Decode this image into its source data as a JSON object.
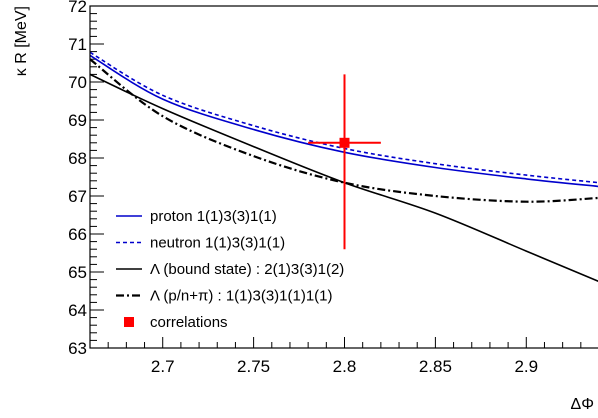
{
  "chart_data": {
    "type": "line",
    "xlabel": "ΔΦ",
    "ylabel": "κ R [MeV]",
    "xlim": [
      2.66,
      2.94
    ],
    "ylim": [
      63,
      72
    ],
    "x_ticks": [
      2.7,
      2.75,
      2.8,
      2.85,
      2.9
    ],
    "x_tick_labels": [
      "2.7",
      "2.75",
      "2.8",
      "2.85",
      "2.9"
    ],
    "y_ticks": [
      63,
      64,
      65,
      66,
      67,
      68,
      69,
      70,
      71,
      72
    ],
    "y_tick_labels": [
      "63",
      "64",
      "65",
      "66",
      "67",
      "68",
      "69",
      "70",
      "71",
      "72"
    ],
    "grid": false,
    "legend_position": "bottom-left",
    "series": [
      {
        "name": "proton 1(1)3(3)1(1)",
        "color": "#0000cc",
        "style": "solid",
        "x": [
          2.66,
          2.7,
          2.75,
          2.8,
          2.85,
          2.9,
          2.94
        ],
        "y": [
          70.7,
          69.55,
          68.75,
          68.15,
          67.75,
          67.45,
          67.25
        ]
      },
      {
        "name": "neutron 1(1)3(3)1(1)",
        "color": "#0000cc",
        "style": "dashed",
        "x": [
          2.66,
          2.7,
          2.75,
          2.8,
          2.85,
          2.9,
          2.94
        ],
        "y": [
          70.78,
          69.65,
          68.85,
          68.25,
          67.85,
          67.55,
          67.35
        ]
      },
      {
        "name": "Λ (bound state) : 2(1)3(3)1(2)",
        "color": "#000000",
        "style": "solid",
        "x": [
          2.66,
          2.7,
          2.75,
          2.8,
          2.85,
          2.9,
          2.94
        ],
        "y": [
          70.2,
          69.3,
          68.3,
          67.35,
          66.55,
          65.55,
          64.75
        ]
      },
      {
        "name": "Λ (p/n+π) : 1(1)3(3)1(1)1(1)",
        "color": "#000000",
        "style": "dashdot",
        "x": [
          2.66,
          2.7,
          2.75,
          2.8,
          2.85,
          2.9,
          2.94
        ],
        "y": [
          70.6,
          69.1,
          68.05,
          67.35,
          67.0,
          66.85,
          66.95
        ]
      }
    ],
    "points": [
      {
        "name": "correlations",
        "color": "#ff0000",
        "x": 2.8,
        "y": 68.4,
        "x_err": 0.02,
        "y_err_low": 2.8,
        "y_err_high": 1.8
      }
    ]
  }
}
